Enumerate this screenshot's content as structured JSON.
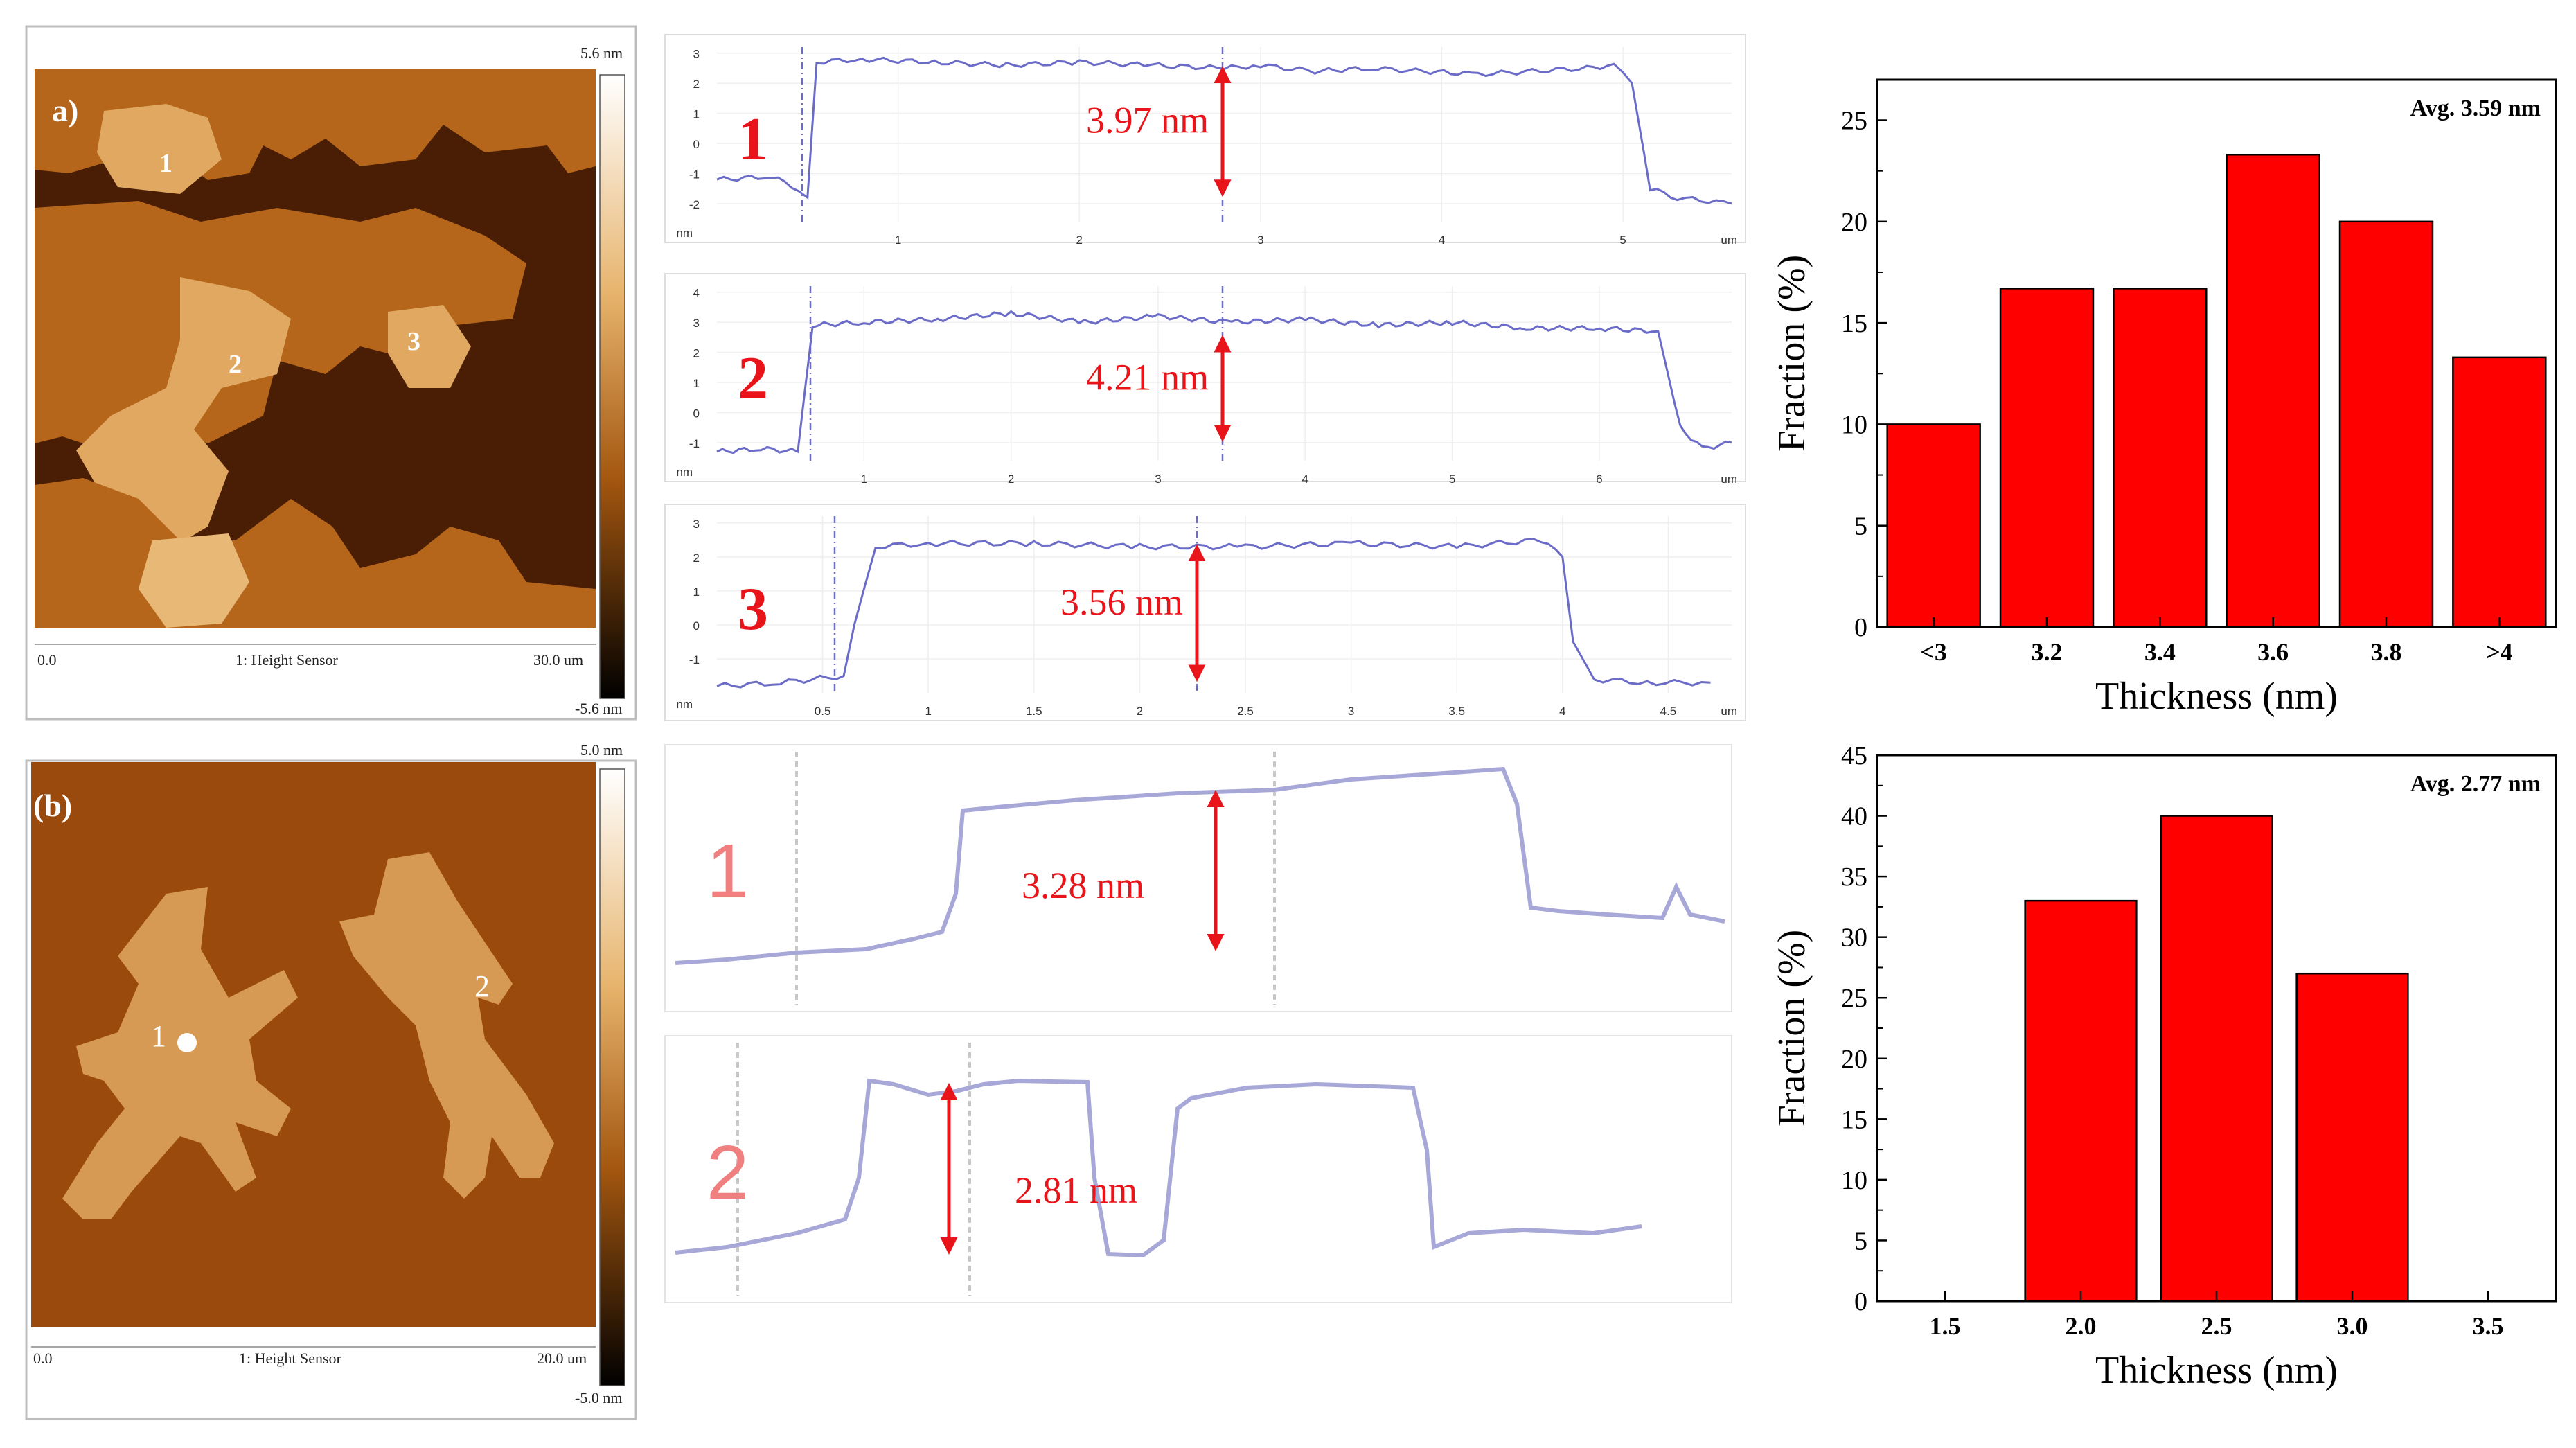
{
  "panel_a": {
    "label": "a)",
    "afm": {
      "region_labels": [
        "1",
        "2",
        "3"
      ],
      "scale_max": "5.6 nm",
      "scale_min": "-5.6 nm",
      "axis_start": "0.0",
      "axis_end": "30.0 um",
      "channel": "1: Height Sensor"
    },
    "profiles": [
      {
        "id": "1",
        "step": "3.97 nm",
        "y_ticks": [
          "3",
          "2",
          "1",
          "0",
          "-1",
          "-2"
        ],
        "y_unit": "nm",
        "x_ticks": [
          "1",
          "2",
          "3",
          "4",
          "5"
        ],
        "x_unit": "um",
        "x_max": 5.6,
        "y_range": [
          -2.6,
          3.2
        ],
        "points": [
          [
            0,
            -1.2
          ],
          [
            0.3,
            -1.1
          ],
          [
            0.45,
            -1.5
          ],
          [
            0.5,
            -1.8
          ],
          [
            0.55,
            2.7
          ],
          [
            0.8,
            2.8
          ],
          [
            1.2,
            2.7
          ],
          [
            1.6,
            2.6
          ],
          [
            2.0,
            2.7
          ],
          [
            2.4,
            2.6
          ],
          [
            2.8,
            2.5
          ],
          [
            3.0,
            2.6
          ],
          [
            3.3,
            2.4
          ],
          [
            3.6,
            2.5
          ],
          [
            3.9,
            2.4
          ],
          [
            4.2,
            2.3
          ],
          [
            4.5,
            2.4
          ],
          [
            4.8,
            2.5
          ],
          [
            4.95,
            2.6
          ],
          [
            5.05,
            2.0
          ],
          [
            5.15,
            -1.5
          ],
          [
            5.3,
            -1.8
          ],
          [
            5.6,
            -2.0
          ]
        ]
      },
      {
        "id": "2",
        "step": "4.21 nm",
        "y_ticks": [
          "4",
          "3",
          "2",
          "1",
          "0",
          "-1"
        ],
        "y_unit": "nm",
        "x_ticks": [
          "1",
          "2",
          "3",
          "4",
          "5",
          "6"
        ],
        "x_unit": "um",
        "x_max": 6.9,
        "y_range": [
          -1.6,
          4.2
        ],
        "points": [
          [
            0,
            -1.3
          ],
          [
            0.3,
            -1.2
          ],
          [
            0.55,
            -1.3
          ],
          [
            0.65,
            2.9
          ],
          [
            1.0,
            3.0
          ],
          [
            1.5,
            3.1
          ],
          [
            2.0,
            3.3
          ],
          [
            2.5,
            3.0
          ],
          [
            3.0,
            3.2
          ],
          [
            3.5,
            3.0
          ],
          [
            4.0,
            3.1
          ],
          [
            4.5,
            2.9
          ],
          [
            5.0,
            3.0
          ],
          [
            5.5,
            2.8
          ],
          [
            6.0,
            2.8
          ],
          [
            6.4,
            2.7
          ],
          [
            6.55,
            -0.5
          ],
          [
            6.7,
            -1.2
          ],
          [
            6.9,
            -1.0
          ]
        ]
      },
      {
        "id": "3",
        "step": "3.56 nm",
        "y_ticks": [
          "3",
          "2",
          "1",
          "0",
          "-1"
        ],
        "y_unit": "nm",
        "x_ticks": [
          "0.5",
          "1",
          "1.5",
          "2",
          "2.5",
          "3",
          "3.5",
          "4",
          "4.5"
        ],
        "x_unit": "um",
        "x_max": 4.8,
        "y_range": [
          -2.0,
          3.2
        ],
        "points": [
          [
            0,
            -1.8
          ],
          [
            0.3,
            -1.7
          ],
          [
            0.6,
            -1.5
          ],
          [
            0.65,
            0.0
          ],
          [
            0.75,
            2.3
          ],
          [
            1.0,
            2.4
          ],
          [
            1.5,
            2.4
          ],
          [
            2.0,
            2.3
          ],
          [
            2.5,
            2.3
          ],
          [
            3.0,
            2.4
          ],
          [
            3.5,
            2.3
          ],
          [
            3.9,
            2.5
          ],
          [
            4.0,
            2.0
          ],
          [
            4.05,
            -0.5
          ],
          [
            4.15,
            -1.6
          ],
          [
            4.4,
            -1.7
          ],
          [
            4.7,
            -1.7
          ]
        ]
      }
    ],
    "chart_data": {
      "type": "bar",
      "categories": [
        "<3",
        "3.2",
        "3.4",
        "3.6",
        "3.8",
        ">4"
      ],
      "values": [
        10,
        16.7,
        16.7,
        23.3,
        20,
        13.3
      ],
      "annotation": "Avg. 3.59 nm",
      "xlabel": "Thickness (nm)",
      "ylabel": "Fraction (%)",
      "ylim": [
        0,
        27
      ],
      "yticks": [
        0,
        5,
        10,
        15,
        20,
        25
      ],
      "bar_color": "#ff0000"
    }
  },
  "panel_b": {
    "label": "(b)",
    "afm": {
      "region_labels": [
        "1",
        "2"
      ],
      "scale_max": "5.0 nm",
      "scale_min": "-5.0 nm",
      "axis_start": "0.0",
      "axis_end": "20.0 um",
      "channel": "1: Height Sensor"
    },
    "profiles": [
      {
        "id": "1",
        "step": "3.28 nm"
      },
      {
        "id": "2",
        "step": "2.81 nm"
      }
    ],
    "chart_data": {
      "type": "bar",
      "categories": [
        "1.5",
        "2.0",
        "2.5",
        "3.0",
        "3.5"
      ],
      "values": [
        0,
        33,
        40,
        27,
        0
      ],
      "annotation": "Avg. 2.77 nm",
      "xlabel": "Thickness (nm)",
      "ylabel": "Fraction (%)",
      "ylim": [
        0,
        45
      ],
      "yticks": [
        0,
        5,
        10,
        15,
        20,
        25,
        30,
        35,
        40,
        45
      ],
      "bar_color": "#ff0000"
    }
  },
  "colors": {
    "profile_line": "#6b6bc8",
    "annotation_red": "#e8141a",
    "afm_dark": "#4a1e05",
    "afm_mid": "#a55a12",
    "afm_light": "#e8b877"
  }
}
